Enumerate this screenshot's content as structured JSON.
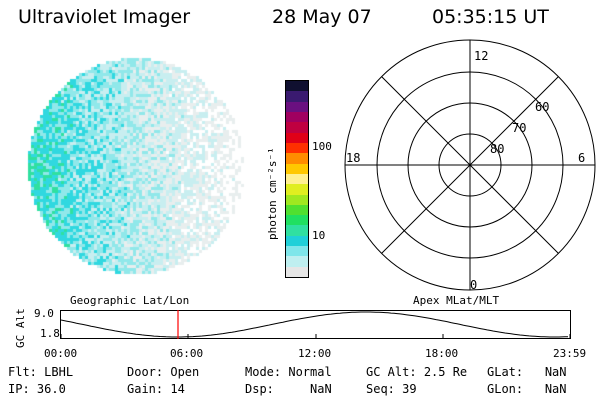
{
  "header": {
    "instrument": "Ultraviolet Imager",
    "date": "28 May 07",
    "time": "05:35:15 UT"
  },
  "colorbar": {
    "unit_label": "photon cm⁻²s⁻¹",
    "tick_100": "100",
    "tick_10": "10",
    "colors": [
      "#e6e6e6",
      "#bfeff0",
      "#7fe6ea",
      "#20d0d8",
      "#30e0a0",
      "#20e060",
      "#50e030",
      "#a0e820",
      "#e0ee20",
      "#fff090",
      "#ffc800",
      "#ff8c00",
      "#ff3000",
      "#e00018",
      "#c00040",
      "#a00060",
      "#6a1080",
      "#3a1a70",
      "#101030"
    ]
  },
  "polar_plot": {
    "labels": {
      "top": "12",
      "left": "18",
      "right": "6",
      "bottom": "0"
    },
    "rings": [
      "60",
      "70",
      "80"
    ]
  },
  "timeline": {
    "left_title": "Geographic Lat/Lon",
    "right_title": "Apex MLat/MLT",
    "axis_label": "GC Alt",
    "y_top": "9.0",
    "y_bottom": "1.8",
    "x_ticks": [
      "00:00",
      "06:00",
      "12:00",
      "18:00",
      "23:59"
    ],
    "marker_color": "#ff0000"
  },
  "info": {
    "flt": {
      "label": "Flt:",
      "value": "LBHL"
    },
    "ip": {
      "label": "IP:",
      "value": "36.0"
    },
    "door": {
      "label": "Door:",
      "value": "Open"
    },
    "gain": {
      "label": "Gain:",
      "value": "14"
    },
    "mode": {
      "label": "Mode:",
      "value": "Normal"
    },
    "dsp": {
      "label": "Dsp:",
      "value": "NaN"
    },
    "gcalt": {
      "label": "GC Alt:",
      "value": "2.5 Re"
    },
    "seq": {
      "label": "Seq:",
      "value": "39"
    },
    "glat": {
      "label": "GLat:",
      "value": "NaN"
    },
    "glon": {
      "label": "GLon:",
      "value": "NaN"
    }
  }
}
